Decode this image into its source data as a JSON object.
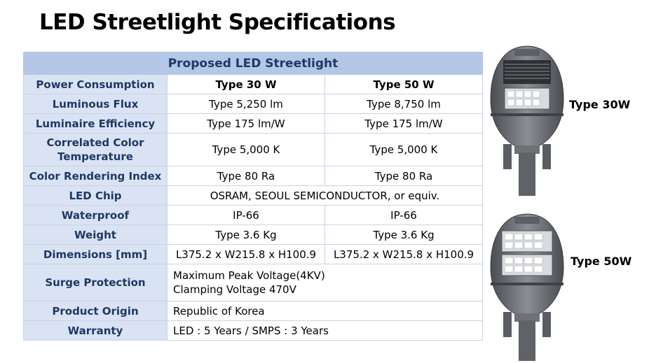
{
  "title": "LED Streetlight Specifications",
  "table": {
    "header": "Proposed LED Streetlight",
    "rows": [
      {
        "label": "Power Consumption",
        "v1": "Type 30 W",
        "v2": "Type 50 W"
      },
      {
        "label": "Luminous Flux",
        "v1": "Type 5,250 lm",
        "v2": "Type 8,750 lm"
      },
      {
        "label": "Luminaire Efficiency",
        "v1": "Type 175 lm/W",
        "v2": "Type 175 lm/W"
      },
      {
        "label_line1": "Correlated Color",
        "label_line2": "Temperature",
        "v1": "Type 5,000 K",
        "v2": "Type 5,000 K"
      },
      {
        "label": "Color Rendering Index",
        "v1": "Type 80 Ra",
        "v2": "Type 80 Ra"
      },
      {
        "label": "LED Chip",
        "value": "OSRAM, SEOUL SEMICONDUCTOR, or equiv."
      },
      {
        "label": "Waterproof",
        "v1": "IP-66",
        "v2": "IP-66"
      },
      {
        "label": "Weight",
        "v1": "Type 3.6 Kg",
        "v2": "Type 3.6 Kg"
      },
      {
        "label": "Dimensions [mm]",
        "v1": "L375.2 x W215.8 x H100.9",
        "v2": "L375.2 x W215.8 x H100.9"
      },
      {
        "label": "Surge Protection",
        "value_line1": "Maximum Peak Voltage(4KV)",
        "value_line2": "Clamping Voltage 470V"
      },
      {
        "label": "Product Origin",
        "value": "Republic of Korea"
      },
      {
        "label": "Warranty",
        "value": "LED : 5 Years / SMPS : 3 Years"
      }
    ]
  },
  "images": {
    "lamp30_label": "Type 30W",
    "lamp50_label": "Type 50W"
  },
  "colors": {
    "header_bg": "#b4c7e7",
    "label_bg": "#dae3f3",
    "label_text": "#1f3864"
  }
}
